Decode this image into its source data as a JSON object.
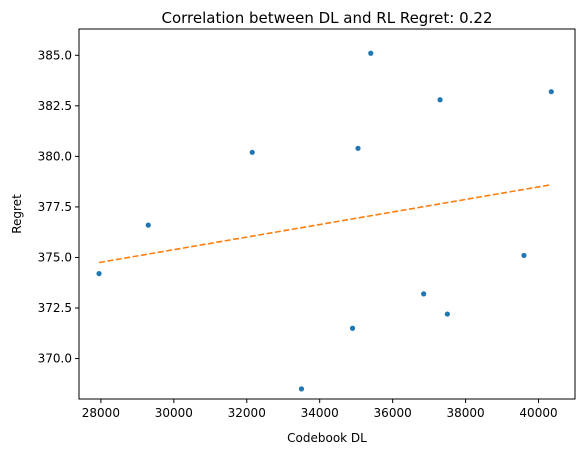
{
  "chart_data": {
    "type": "scatter",
    "title": "Correlation between DL and RL Regret: 0.22",
    "xlabel": "Codebook DL",
    "ylabel": "Regret",
    "xlim": [
      27400,
      41000
    ],
    "ylim": [
      368.0,
      386.3
    ],
    "xticks": [
      28000,
      30000,
      32000,
      34000,
      36000,
      38000,
      40000
    ],
    "xtick_labels": [
      "28000",
      "30000",
      "32000",
      "34000",
      "36000",
      "38000",
      "40000"
    ],
    "yticks": [
      370.0,
      372.5,
      375.0,
      377.5,
      380.0,
      382.5,
      385.0
    ],
    "ytick_labels": [
      "370.0",
      "372.5",
      "375.0",
      "377.5",
      "380.0",
      "382.5",
      "385.0"
    ],
    "grid": false,
    "series": [
      {
        "type": "scatter",
        "color": "#1f77b4",
        "x": [
          27950,
          29300,
          32150,
          33500,
          34900,
          35050,
          35400,
          36850,
          37300,
          37500,
          39600,
          40350
        ],
        "y": [
          374.2,
          376.6,
          380.2,
          368.5,
          371.5,
          380.4,
          385.1,
          373.2,
          382.8,
          372.2,
          375.1,
          383.2
        ]
      },
      {
        "type": "line",
        "style": "dashed",
        "color": "#ff7f0e",
        "x": [
          27950,
          40350
        ],
        "y": [
          374.75,
          378.6
        ]
      }
    ]
  }
}
